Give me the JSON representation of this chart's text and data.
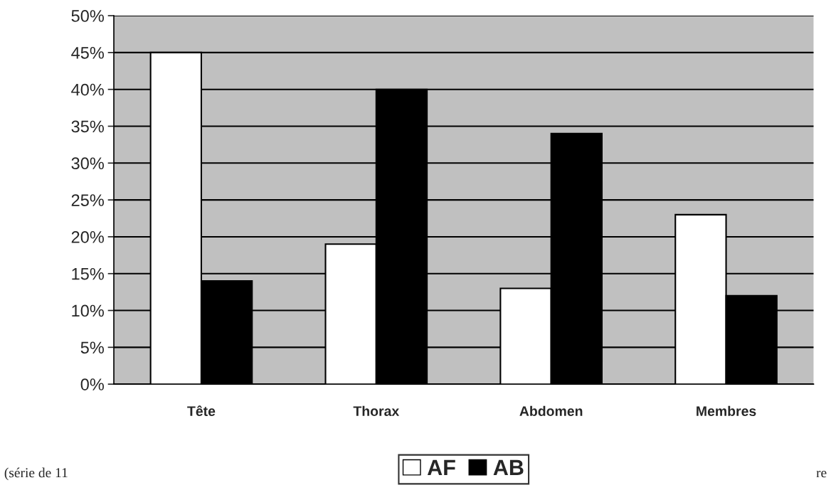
{
  "chart_data": {
    "type": "bar",
    "categories": [
      "Tête",
      "Thorax",
      "Abdomen",
      "Membres"
    ],
    "series": [
      {
        "name": "AF",
        "color": "#ffffff",
        "values": [
          45,
          19,
          13,
          23
        ]
      },
      {
        "name": "AB",
        "color": "#000000",
        "values": [
          14,
          40,
          34,
          12
        ]
      }
    ],
    "ylim": [
      0,
      50
    ],
    "yticks": [
      {
        "value": 0,
        "label": "0%"
      },
      {
        "value": 5,
        "label": "5%"
      },
      {
        "value": 10,
        "label": "10%"
      },
      {
        "value": 15,
        "label": "15%"
      },
      {
        "value": 20,
        "label": "20%"
      },
      {
        "value": 25,
        "label": "25%"
      },
      {
        "value": 30,
        "label": "30%"
      },
      {
        "value": 35,
        "label": "35%"
      },
      {
        "value": 40,
        "label": "40%"
      },
      {
        "value": 45,
        "label": "45%"
      },
      {
        "value": 50,
        "label": "50%"
      }
    ],
    "grid": "y",
    "legend": "bottom",
    "annotations": [
      "(série de 11",
      "re"
    ]
  }
}
